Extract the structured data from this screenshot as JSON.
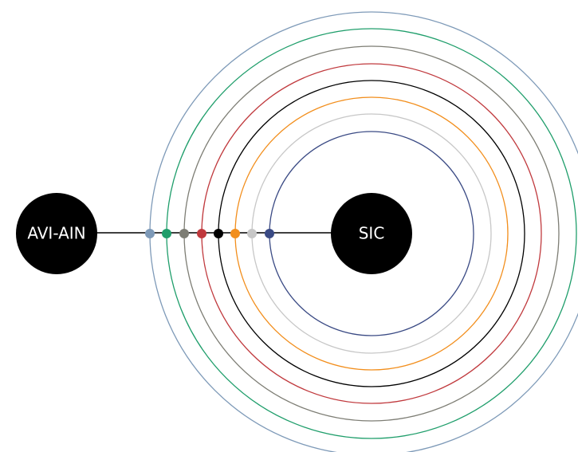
{
  "diagram": {
    "nodes": {
      "source": {
        "label": "AVI-AIN",
        "color": "#000000"
      },
      "target": {
        "label": "SIC",
        "color": "#000000"
      }
    },
    "link_color": "#000000",
    "rings": [
      {
        "color": "#7e9ab8"
      },
      {
        "color": "#1f9e6b"
      },
      {
        "color": "#7d7d74"
      },
      {
        "color": "#c0393d"
      },
      {
        "color": "#000000"
      },
      {
        "color": "#f28e1c"
      },
      {
        "color": "#c7c7c7"
      },
      {
        "color": "#3a4a84"
      }
    ]
  }
}
